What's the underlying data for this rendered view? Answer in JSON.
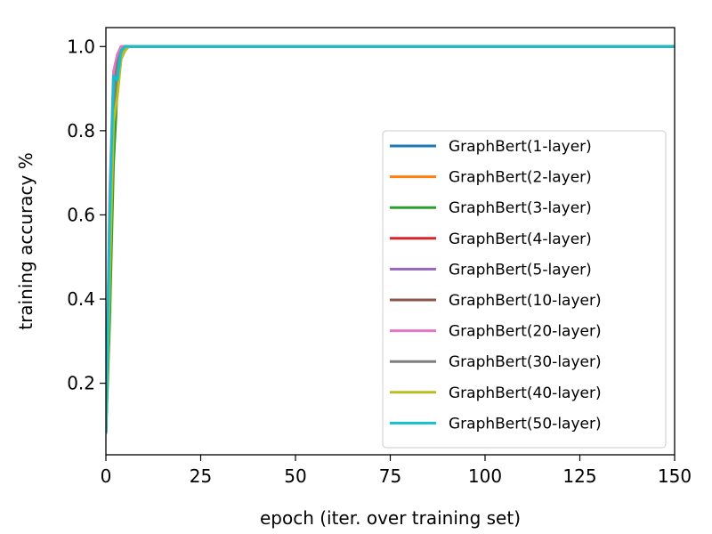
{
  "chart_data": {
    "type": "line",
    "title": "",
    "xlabel": "epoch (iter. over training set)",
    "ylabel": "training accuracy %",
    "xlim": [
      0,
      150
    ],
    "ylim": [
      0.03,
      1.045
    ],
    "xticks": [
      0,
      25,
      50,
      75,
      100,
      125,
      150
    ],
    "yticks": [
      0.2,
      0.4,
      0.6,
      0.8,
      1.0
    ],
    "xtick_labels": [
      "0",
      "25",
      "50",
      "75",
      "100",
      "125",
      "150"
    ],
    "ytick_labels": [
      "0.2",
      "0.4",
      "0.6",
      "0.8",
      "1.0"
    ],
    "grid": false,
    "legend_position": "lower-right",
    "series": [
      {
        "name": "GraphBert(1-layer)",
        "color": "#1f77b4",
        "x": [
          0,
          1,
          2,
          3,
          4,
          5,
          6,
          150
        ],
        "y": [
          0.08,
          0.5,
          0.85,
          0.95,
          0.99,
          1.0,
          1.0,
          1.0
        ]
      },
      {
        "name": "GraphBert(2-layer)",
        "color": "#ff7f0e",
        "x": [
          0,
          1,
          2,
          3,
          4,
          5,
          6,
          150
        ],
        "y": [
          0.08,
          0.45,
          0.8,
          0.93,
          0.98,
          1.0,
          1.0,
          1.0
        ]
      },
      {
        "name": "GraphBert(3-layer)",
        "color": "#2ca02c",
        "x": [
          0,
          1,
          2,
          3,
          4,
          5,
          6,
          150
        ],
        "y": [
          0.08,
          0.35,
          0.72,
          0.9,
          0.97,
          0.99,
          1.0,
          1.0
        ]
      },
      {
        "name": "GraphBert(4-layer)",
        "color": "#d62728",
        "x": [
          0,
          1,
          2,
          3,
          4,
          5,
          6,
          150
        ],
        "y": [
          0.08,
          0.55,
          0.88,
          0.97,
          0.99,
          1.0,
          1.0,
          1.0
        ]
      },
      {
        "name": "GraphBert(5-layer)",
        "color": "#9467bd",
        "x": [
          0,
          1,
          2,
          3,
          4,
          5,
          150
        ],
        "y": [
          0.08,
          0.6,
          0.93,
          0.98,
          1.0,
          1.0,
          1.0
        ]
      },
      {
        "name": "GraphBert(10-layer)",
        "color": "#8c564b",
        "x": [
          0,
          1,
          2,
          3,
          4,
          5,
          150
        ],
        "y": [
          0.08,
          0.55,
          0.9,
          0.97,
          0.99,
          1.0,
          1.0
        ]
      },
      {
        "name": "GraphBert(20-layer)",
        "color": "#e377c2",
        "x": [
          0,
          1,
          2,
          3,
          4,
          5,
          150
        ],
        "y": [
          0.08,
          0.65,
          0.94,
          0.98,
          1.0,
          1.0,
          1.0
        ]
      },
      {
        "name": "GraphBert(30-layer)",
        "color": "#7f7f7f",
        "x": [
          0,
          1,
          2,
          3,
          4,
          5,
          150
        ],
        "y": [
          0.08,
          0.5,
          0.86,
          0.96,
          0.99,
          1.0,
          1.0
        ]
      },
      {
        "name": "GraphBert(40-layer)",
        "color": "#bcbd22",
        "x": [
          0,
          1,
          2,
          3,
          4,
          5,
          6,
          150
        ],
        "y": [
          0.08,
          0.45,
          0.82,
          0.88,
          0.97,
          0.99,
          1.0,
          1.0
        ]
      },
      {
        "name": "GraphBert(50-layer)",
        "color": "#17becf",
        "x": [
          0,
          1,
          2,
          3,
          4,
          5,
          150
        ],
        "y": [
          0.08,
          0.6,
          0.93,
          0.92,
          0.99,
          1.0,
          1.0
        ]
      }
    ]
  }
}
